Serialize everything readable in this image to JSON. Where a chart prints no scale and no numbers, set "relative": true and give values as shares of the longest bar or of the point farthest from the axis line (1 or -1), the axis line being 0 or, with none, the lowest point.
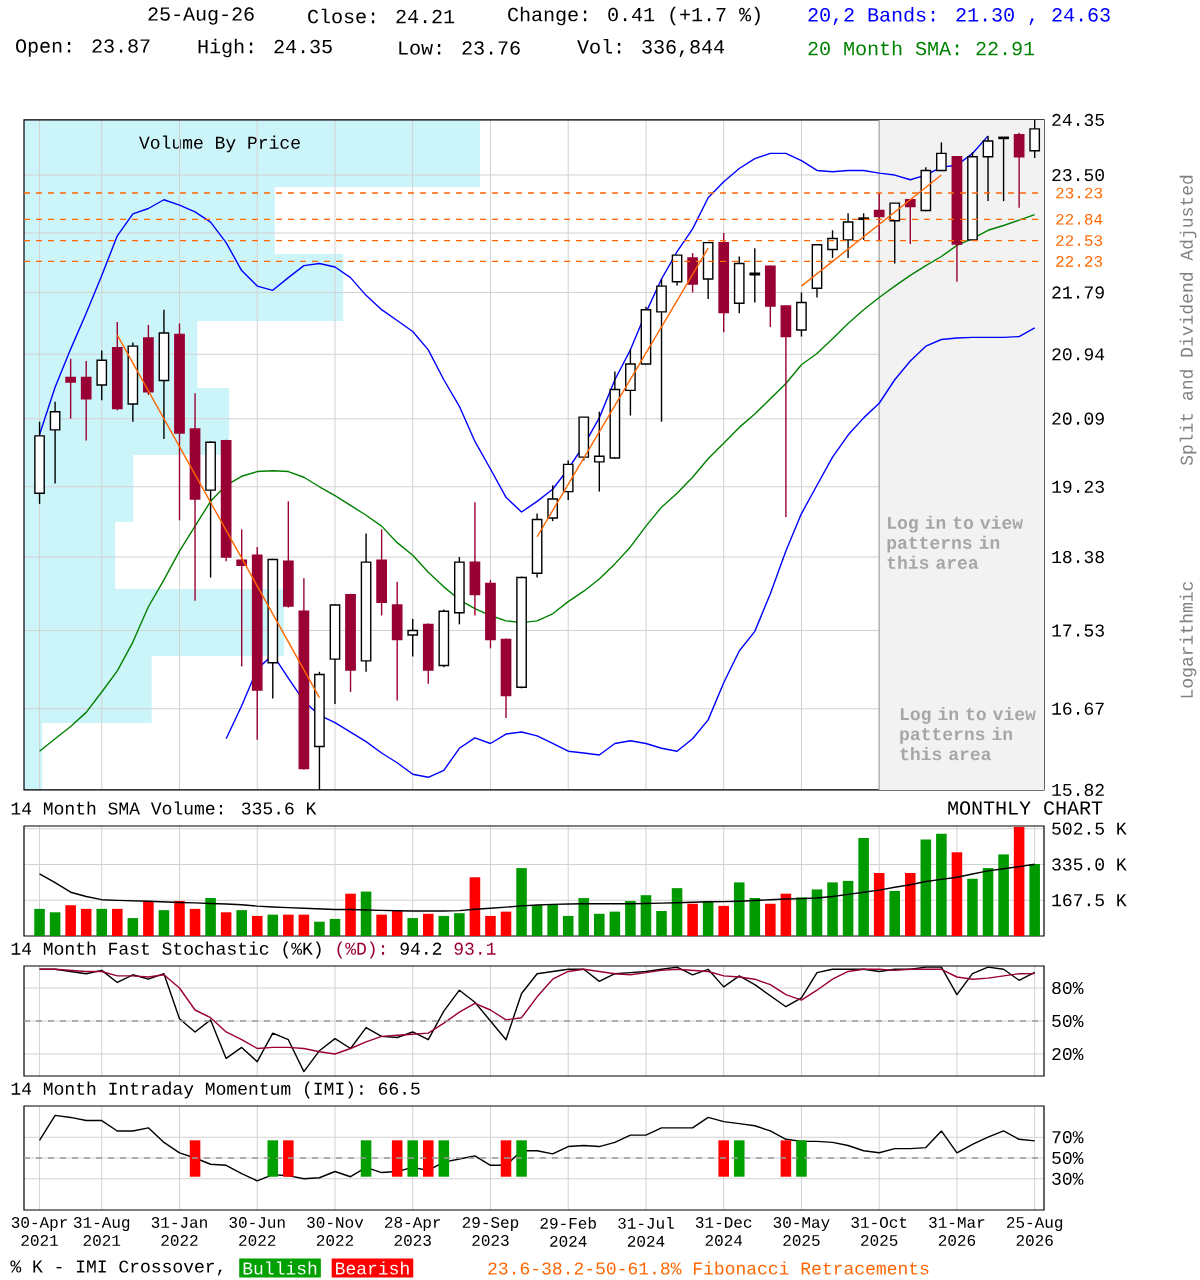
{
  "chart_data": [
    {
      "type": "candlestick",
      "categories": [
        "30-Apr 2021",
        null,
        null,
        null,
        "31-Aug 2021",
        null,
        null,
        null,
        null,
        "31-Jan 2022",
        null,
        null,
        null,
        null,
        "30-Jun 2022",
        null,
        null,
        null,
        null,
        "30-Nov 2022",
        null,
        null,
        null,
        null,
        "28-Apr 2023",
        null,
        null,
        null,
        null,
        "29-Sep 2023",
        null,
        null,
        null,
        null,
        "29-Feb 2024",
        null,
        null,
        null,
        null,
        "31-Jul 2024",
        null,
        null,
        null,
        null,
        "31-Dec 2024",
        null,
        null,
        null,
        null,
        "30-May 2025",
        null,
        null,
        null,
        null,
        "31-Oct 2025",
        null,
        null,
        null,
        null,
        "31-Mar 2026",
        null,
        null,
        null,
        null,
        "25-Aug 2026"
      ],
      "ohlc": [
        [
          19.15,
          20.05,
          19.02,
          19.87
        ],
        [
          19.95,
          20.31,
          19.27,
          20.18
        ],
        [
          20.63,
          20.88,
          20.09,
          20.57
        ],
        [
          20.63,
          20.85,
          19.81,
          20.35
        ],
        [
          20.53,
          20.99,
          20.33,
          20.86
        ],
        [
          21.03,
          21.38,
          20.2,
          20.22
        ],
        [
          20.28,
          21.1,
          20.05,
          21.05
        ],
        [
          21.16,
          21.34,
          20.4,
          20.44
        ],
        [
          20.59,
          21.55,
          19.83,
          21.23
        ],
        [
          21.21,
          21.36,
          18.82,
          19.91
        ],
        [
          19.96,
          20.42,
          17.87,
          19.08
        ],
        [
          19.19,
          19.8,
          18.14,
          19.79
        ],
        [
          19.81,
          19.82,
          18.33,
          18.38
        ],
        [
          18.34,
          18.71,
          17.13,
          18.28
        ],
        [
          18.4,
          18.5,
          16.34,
          16.87
        ],
        [
          17.17,
          18.36,
          16.78,
          18.35
        ],
        [
          18.33,
          19.05,
          17.79,
          17.81
        ],
        [
          17.75,
          18.13,
          16.03,
          16.04
        ],
        [
          16.27,
          17.07,
          15.82,
          17.04
        ],
        [
          17.21,
          17.83,
          16.72,
          17.82
        ],
        [
          17.94,
          17.95,
          16.85,
          17.09
        ],
        [
          17.19,
          18.66,
          17.07,
          18.32
        ],
        [
          18.34,
          18.71,
          17.7,
          17.85
        ],
        [
          17.82,
          18.09,
          16.76,
          17.43
        ],
        [
          17.48,
          17.66,
          17.24,
          17.53
        ],
        [
          17.6,
          17.61,
          16.94,
          17.09
        ],
        [
          17.14,
          17.77,
          17.12,
          17.75
        ],
        [
          17.73,
          18.38,
          17.6,
          18.32
        ],
        [
          18.32,
          19.04,
          17.7,
          17.94
        ],
        [
          18.07,
          18.11,
          17.33,
          17.43
        ],
        [
          17.43,
          17.44,
          16.57,
          16.81
        ],
        [
          16.9,
          18.15,
          16.89,
          18.14
        ],
        [
          18.19,
          18.9,
          18.14,
          18.83
        ],
        [
          18.85,
          19.25,
          18.81,
          19.08
        ],
        [
          19.17,
          19.56,
          19.07,
          19.51
        ],
        [
          19.6,
          20.11,
          19.56,
          20.11
        ],
        [
          19.54,
          20.18,
          19.17,
          19.61
        ],
        [
          19.59,
          20.71,
          19.58,
          20.47
        ],
        [
          20.46,
          21.01,
          20.13,
          20.81
        ],
        [
          20.81,
          21.59,
          20.8,
          21.55
        ],
        [
          21.52,
          21.98,
          20.05,
          21.88
        ],
        [
          21.94,
          22.32,
          21.89,
          22.32
        ],
        [
          22.28,
          22.35,
          21.79,
          21.91
        ],
        [
          21.98,
          22.5,
          21.7,
          22.5
        ],
        [
          22.5,
          22.64,
          21.24,
          21.51
        ],
        [
          21.64,
          22.3,
          21.5,
          22.2
        ],
        [
          22.04,
          22.42,
          21.65,
          22.06
        ],
        [
          22.16,
          22.17,
          21.31,
          21.6
        ],
        [
          21.6,
          21.61,
          18.86,
          21.18
        ],
        [
          21.27,
          21.79,
          21.18,
          21.65
        ],
        [
          21.85,
          22.47,
          21.72,
          22.47
        ],
        [
          22.4,
          22.68,
          22.28,
          22.56
        ],
        [
          22.54,
          22.93,
          22.28,
          22.8
        ],
        [
          22.84,
          22.93,
          22.54,
          22.86
        ],
        [
          22.97,
          23.23,
          22.53,
          22.88
        ],
        [
          22.82,
          23.08,
          22.2,
          23.08
        ],
        [
          23.13,
          23.14,
          22.48,
          23.03
        ],
        [
          22.97,
          23.62,
          22.96,
          23.57
        ],
        [
          23.57,
          24.0,
          23.56,
          23.83
        ],
        [
          23.78,
          23.79,
          21.94,
          22.48
        ],
        [
          22.54,
          23.85,
          22.53,
          23.78
        ],
        [
          23.78,
          24.1,
          23.11,
          24.02
        ],
        [
          24.06,
          24.08,
          23.11,
          24.08
        ],
        [
          24.12,
          24.15,
          23.01,
          23.78
        ],
        [
          23.87,
          24.35,
          23.76,
          24.21
        ]
      ],
      "colors": [
        "#ffffff",
        "#ffffff",
        "#990033",
        "#990033",
        "#ffffff",
        "#990033",
        "#ffffff",
        "#990033",
        "#ffffff",
        "#990033",
        "#990033",
        "#ffffff",
        "#990033",
        "#990033",
        "#990033",
        "#ffffff",
        "#990033",
        "#990033",
        "#ffffff",
        "#ffffff",
        "#990033",
        "#ffffff",
        "#990033",
        "#990033",
        "#ffffff",
        "#990033",
        "#ffffff",
        "#ffffff",
        "#990033",
        "#990033",
        "#990033",
        "#ffffff",
        "#ffffff",
        "#ffffff",
        "#ffffff",
        "#ffffff",
        "#ffffff",
        "#ffffff",
        "#ffffff",
        "#ffffff",
        "#ffffff",
        "#ffffff",
        "#990033",
        "#ffffff",
        "#990033",
        "#ffffff",
        "#ffffff",
        "#990033",
        "#990033",
        "#ffffff",
        "#ffffff",
        "#ffffff",
        "#ffffff",
        "#ffffff",
        "#990033",
        "#ffffff",
        "#990033",
        "#ffffff",
        "#ffffff",
        "#990033",
        "#ffffff",
        "#ffffff",
        "#ffffff",
        "#990033",
        "#ffffff"
      ],
      "log": true,
      "ylim": [
        15.82,
        24.35
      ],
      "yticks": [
        24.35,
        {
          "value": 23.5,
          "label": "23.50"
        },
        {
          "value": 22.64,
          "label": null
        },
        21.79,
        20.94,
        20.09,
        19.23,
        18.38,
        17.53,
        16.67,
        15.82
      ],
      "grid": true,
      "tick_labels": "y",
      "series": [
        {
          "type": "line",
          "name": "20,2 Bands: 21.30 , 24.63",
          "color": "#0000ff",
          "values": [
            19.89,
            20.5,
            21.01,
            21.5,
            22.03,
            22.6,
            22.92,
            23.0,
            23.13,
            23.05,
            22.95,
            22.8,
            22.5,
            22.1,
            21.88,
            21.82,
            22.0,
            22.17,
            22.2,
            22.15,
            22.0,
            21.75,
            21.55,
            21.4,
            21.25,
            21.0,
            20.6,
            20.25,
            19.8,
            19.45,
            19.1,
            18.92,
            19.05,
            19.2,
            19.45,
            19.75,
            20.1,
            20.6,
            21.0,
            21.51,
            21.98,
            22.37,
            22.7,
            23.16,
            23.4,
            23.6,
            23.75,
            23.83,
            23.83,
            23.72,
            23.57,
            23.55,
            23.57,
            23.57,
            23.53,
            23.5,
            23.43,
            23.5,
            23.62,
            23.65,
            23.83,
            24.1,
            null,
            null,
            null
          ]
        },
        {
          "type": "line",
          "color": "#0000ff",
          "values": [
            null,
            null,
            null,
            null,
            null,
            null,
            null,
            null,
            null,
            null,
            null,
            null,
            16.35,
            16.7,
            17.1,
            17.26,
            17.0,
            16.75,
            16.6,
            16.52,
            16.42,
            16.32,
            16.2,
            16.1,
            15.98,
            15.95,
            16.02,
            16.25,
            16.36,
            16.3,
            16.4,
            16.42,
            16.38,
            16.3,
            16.22,
            16.2,
            16.18,
            16.3,
            16.33,
            16.3,
            16.25,
            16.22,
            16.35,
            16.55,
            16.95,
            17.3,
            17.52,
            17.95,
            18.45,
            18.9,
            19.25,
            19.6,
            19.88,
            20.1,
            20.29,
            20.6,
            20.85,
            21.05,
            21.14,
            21.16,
            21.17,
            21.17,
            21.17,
            21.18,
            21.3
          ]
        },
        {
          "type": "line",
          "name": "20 Month SMA: 22.91",
          "color": "#008000",
          "values": [
            16.22,
            16.35,
            16.48,
            16.63,
            16.85,
            17.08,
            17.4,
            17.8,
            18.11,
            18.45,
            18.75,
            19.05,
            19.25,
            19.36,
            19.42,
            19.43,
            19.42,
            19.35,
            19.23,
            19.12,
            19.0,
            18.88,
            18.75,
            18.55,
            18.4,
            18.2,
            18.03,
            17.88,
            17.78,
            17.7,
            17.64,
            17.62,
            17.64,
            17.72,
            17.86,
            17.98,
            18.12,
            18.3,
            18.5,
            18.75,
            18.98,
            19.15,
            19.35,
            19.58,
            19.78,
            19.98,
            20.15,
            20.35,
            20.55,
            20.8,
            20.95,
            21.15,
            21.36,
            21.55,
            21.72,
            21.88,
            22.03,
            22.17,
            22.3,
            22.46,
            22.56,
            22.68,
            22.75,
            22.83,
            22.91
          ]
        },
        {
          "type": "line",
          "color": "#ff6600",
          "values": [
            null,
            null,
            null,
            null,
            null,
            21.2,
            null,
            null,
            null,
            null,
            null,
            null,
            null,
            null,
            null,
            null,
            null,
            null,
            16.79,
            null,
            null,
            null,
            null,
            null,
            null,
            null,
            null,
            null,
            null,
            null,
            null,
            null,
            null,
            null,
            null,
            null,
            null,
            null,
            null,
            null,
            null,
            null,
            null,
            null,
            null,
            null,
            null,
            null,
            null,
            null,
            null,
            null,
            null,
            null,
            null,
            null,
            null,
            null,
            null,
            null,
            null,
            null,
            null,
            null,
            null
          ]
        },
        {
          "type": "line",
          "color": "#ff6600",
          "values": [
            null,
            null,
            null,
            null,
            null,
            null,
            null,
            null,
            null,
            null,
            null,
            null,
            null,
            null,
            null,
            null,
            null,
            null,
            null,
            null,
            null,
            null,
            null,
            null,
            null,
            null,
            null,
            null,
            null,
            null,
            null,
            null,
            18.62,
            null,
            null,
            null,
            null,
            null,
            null,
            null,
            null,
            null,
            null,
            22.42,
            null,
            null,
            null,
            null,
            null,
            null,
            null,
            null,
            null,
            null,
            null,
            null,
            null,
            null,
            null,
            null,
            null,
            null,
            null,
            null,
            null
          ]
        },
        {
          "type": "line",
          "color": "#ff6600",
          "values": [
            null,
            null,
            null,
            null,
            null,
            null,
            null,
            null,
            null,
            null,
            null,
            null,
            null,
            null,
            null,
            null,
            null,
            null,
            null,
            null,
            null,
            null,
            null,
            null,
            null,
            null,
            null,
            null,
            null,
            null,
            null,
            null,
            null,
            null,
            null,
            null,
            null,
            null,
            null,
            null,
            null,
            null,
            null,
            null,
            null,
            null,
            null,
            null,
            null,
            21.88,
            null,
            null,
            null,
            null,
            null,
            null,
            null,
            null,
            23.5,
            null,
            null,
            null,
            null,
            null,
            null
          ]
        }
      ],
      "ref_lines": [
        {
          "axis": "y",
          "value": 23.23,
          "label": "23.23",
          "color": "#ff6600",
          "line_style": "dashed"
        },
        {
          "axis": "y",
          "value": 22.84,
          "label": "22.84",
          "color": "#ff6600",
          "line_style": "dashed"
        },
        {
          "axis": "y",
          "value": 22.53,
          "label": "22.53",
          "color": "#ff6600",
          "line_style": "dashed"
        },
        {
          "axis": "y",
          "value": 22.23,
          "label": "22.23",
          "color": "#ff6600",
          "line_style": "dashed"
        }
      ],
      "bands": [
        {
          "axis": "x",
          "from": "31-Oct 2025",
          "to": "25-Aug 2026",
          "label": "Log in to view patterns in this area",
          "color": "#f2f2f2"
        }
      ],
      "annotations": [
        "25-Aug-26",
        "Close: 24.21",
        "Change: 0.41 (+1.7 %)",
        "Open: 23.87",
        "High: 24.35",
        "Low: 23.76",
        "Vol: 336,844",
        "Split and Dividend Adjusted",
        "Logarithmic",
        "Log in to view patterns in this area",
        "23.6-38.2-50-61.8% Fibonacci Retracements"
      ]
    },
    {
      "type": "bar",
      "orientation": "horizontal",
      "relative": true,
      "title": "Volume By Price",
      "color": "#ccf5fa",
      "categories": [
        null,
        null,
        null,
        null,
        null,
        null,
        null,
        null,
        null,
        null
      ],
      "values": [
        1,
        0.55,
        0.7,
        0.38,
        0.45,
        0.24,
        0.2,
        0.57,
        0.28,
        0.04
      ]
    },
    {
      "type": "bar",
      "title": "14 Month SMA Volume: 335.6 K",
      "categories": [
        "30-Apr 2021",
        null,
        null,
        null,
        "31-Aug 2021",
        null,
        null,
        null,
        null,
        "31-Jan 2022",
        null,
        null,
        null,
        null,
        "30-Jun 2022",
        null,
        null,
        null,
        null,
        "30-Nov 2022",
        null,
        null,
        null,
        null,
        "28-Apr 2023",
        null,
        null,
        null,
        null,
        "29-Sep 2023",
        null,
        null,
        null,
        null,
        "29-Feb 2024",
        null,
        null,
        null,
        null,
        "31-Jul 2024",
        null,
        null,
        null,
        null,
        "31-Dec 2024",
        null,
        null,
        null,
        null,
        "30-May 2025",
        null,
        null,
        null,
        null,
        "31-Oct 2025",
        null,
        null,
        null,
        null,
        "31-Mar 2026",
        null,
        null,
        null,
        null,
        "25-Aug 2026"
      ],
      "ylim": [
        0,
        515
      ],
      "yticks": [
        {
          "value": 167.5,
          "label": "167.5 K"
        },
        {
          "value": 335,
          "label": "335.0 K"
        },
        {
          "value": 502.5,
          "label": "502.5 K"
        }
      ],
      "grid": true,
      "tick_labels": "y",
      "series": [
        {
          "type": "bar",
          "values": [
            127,
            111,
            144,
            127,
            127,
            127,
            84,
            164,
            121,
            164,
            127,
            178,
            111,
            121,
            94,
            100,
            100,
            100,
            67,
            80,
            198,
            208,
            100,
            117,
            84,
            104,
            94,
            107,
            275,
            94,
            114,
            318,
            144,
            147,
            94,
            178,
            104,
            114,
            164,
            191,
            117,
            224,
            151,
            161,
            141,
            251,
            178,
            151,
            198,
            181,
            218,
            251,
            258,
            459,
            295,
            211,
            295,
            452,
            479,
            392,
            268,
            318,
            382,
            510,
            337
          ],
          "colors": [
            "#009900",
            "#009900",
            "#ff0000",
            "#ff0000",
            "#009900",
            "#ff0000",
            "#009900",
            "#ff0000",
            "#009900",
            "#ff0000",
            "#ff0000",
            "#009900",
            "#ff0000",
            "#009900",
            "#ff0000",
            "#009900",
            "#ff0000",
            "#ff0000",
            "#009900",
            "#009900",
            "#ff0000",
            "#009900",
            "#ff0000",
            "#ff0000",
            "#009900",
            "#ff0000",
            "#009900",
            "#009900",
            "#ff0000",
            "#ff0000",
            "#ff0000",
            "#009900",
            "#009900",
            "#009900",
            "#009900",
            "#009900",
            "#009900",
            "#009900",
            "#009900",
            "#009900",
            "#009900",
            "#009900",
            "#ff0000",
            "#009900",
            "#ff0000",
            "#009900",
            "#009900",
            "#ff0000",
            "#ff0000",
            "#009900",
            "#009900",
            "#009900",
            "#009900",
            "#009900",
            "#ff0000",
            "#009900",
            "#ff0000",
            "#009900",
            "#009900",
            "#ff0000",
            "#009900",
            "#009900",
            "#009900",
            "#ff0000",
            "#009900"
          ]
        },
        {
          "type": "line",
          "color": "#000000",
          "values": [
            291,
            250,
            205,
            185,
            170,
            167,
            165,
            163,
            160,
            157,
            155,
            152,
            150,
            146,
            140,
            136,
            133,
            130,
            127,
            124,
            124,
            122,
            120,
            118,
            117,
            117,
            117,
            119,
            125,
            130,
            135,
            141,
            145,
            148,
            150,
            151,
            151,
            151,
            151,
            152,
            154,
            156,
            158,
            160,
            161,
            163,
            166,
            170,
            173,
            175,
            178,
            185,
            195,
            205,
            215,
            228,
            240,
            255,
            265,
            275,
            290,
            305,
            315,
            325,
            335.6
          ]
        }
      ],
      "annotations": [
        "MONTHLY CHART"
      ]
    },
    {
      "type": "line",
      "title": "14 Month Fast Stochastic",
      "categories": [
        "30-Apr 2021",
        null,
        null,
        null,
        "31-Aug 2021",
        null,
        null,
        null,
        null,
        "31-Jan 2022",
        null,
        null,
        null,
        null,
        "30-Jun 2022",
        null,
        null,
        null,
        null,
        "30-Nov 2022",
        null,
        null,
        null,
        null,
        "28-Apr 2023",
        null,
        null,
        null,
        null,
        "29-Sep 2023",
        null,
        null,
        null,
        null,
        "29-Feb 2024",
        null,
        null,
        null,
        null,
        "31-Jul 2024",
        null,
        null,
        null,
        null,
        "31-Dec 2024",
        null,
        null,
        null,
        null,
        "30-May 2025",
        null,
        null,
        null,
        null,
        "31-Oct 2025",
        null,
        null,
        null,
        null,
        "31-Mar 2026",
        null,
        null,
        null,
        null,
        "25-Aug 2026"
      ],
      "ylim": [
        0,
        100
      ],
      "yticks": [
        {
          "value": 80,
          "label": "80%"
        },
        {
          "value": 50,
          "label": "50%"
        },
        {
          "value": 20,
          "label": "20%"
        }
      ],
      "grid": true,
      "tick_labels": "y",
      "ref_lines": [
        {
          "axis": "y",
          "value": 50,
          "color": "#999999",
          "line_style": "dashed"
        }
      ],
      "series": [
        {
          "name": "(%K)",
          "color": "#000000",
          "values": [
            97,
            97,
            95,
            93,
            96,
            85,
            92,
            88,
            93,
            52,
            40,
            51,
            16,
            26,
            13,
            39,
            33,
            4,
            23,
            34,
            25,
            44,
            36,
            35,
            40,
            33,
            59,
            78,
            67,
            50,
            33,
            75,
            93,
            95,
            97,
            97,
            86,
            93,
            94,
            95,
            97,
            99,
            92,
            97,
            81,
            91,
            83,
            73,
            63,
            71,
            94,
            97,
            97,
            97,
            95,
            97,
            97,
            99,
            99,
            74,
            93,
            99,
            97,
            87,
            94.2
          ]
        },
        {
          "name": "(%D):",
          "color": "#990033",
          "values": [
            97,
            97,
            96,
            95,
            95,
            91,
            91,
            90,
            92,
            80,
            60,
            53,
            40,
            33,
            25,
            26,
            26,
            25,
            22,
            20,
            25,
            31,
            36,
            37,
            38,
            39,
            48,
            58,
            66,
            60,
            51,
            53,
            72,
            88,
            95,
            97,
            95,
            93,
            92,
            94,
            96,
            97,
            96,
            95,
            91,
            90,
            88,
            83,
            74,
            69,
            78,
            88,
            95,
            97,
            97,
            96,
            97,
            97,
            97,
            90,
            88,
            89,
            91,
            93,
            93.1
          ]
        }
      ],
      "annotations": [
        "94.2",
        "93.1"
      ]
    },
    {
      "type": "line",
      "title": "14 Month Intraday Momentum (IMI): 66.5",
      "categories": [
        "30-Apr 2021",
        null,
        null,
        null,
        "31-Aug 2021",
        null,
        null,
        null,
        null,
        "31-Jan 2022",
        null,
        null,
        null,
        null,
        "30-Jun 2022",
        null,
        null,
        null,
        null,
        "30-Nov 2022",
        null,
        null,
        null,
        null,
        "28-Apr 2023",
        null,
        null,
        null,
        null,
        "29-Sep 2023",
        null,
        null,
        null,
        null,
        "29-Feb 2024",
        null,
        null,
        null,
        null,
        "31-Jul 2024",
        null,
        null,
        null,
        null,
        "31-Dec 2024",
        null,
        null,
        null,
        null,
        "30-May 2025",
        null,
        null,
        null,
        null,
        "31-Oct 2025",
        null,
        null,
        null,
        null,
        "31-Mar 2026",
        null,
        null,
        null,
        null,
        "25-Aug 2026"
      ],
      "ylim": [
        0,
        100
      ],
      "yticks": [
        {
          "value": 70,
          "label": "70%"
        },
        {
          "value": 50,
          "label": "50%"
        },
        {
          "value": 30,
          "label": "30%"
        }
      ],
      "grid": true,
      "ref_lines": [
        {
          "axis": "y",
          "value": 50,
          "color": "#999999",
          "line_style": "dashed"
        }
      ],
      "legend": "bottom",
      "legend_title": "% K - IMI Crossover,",
      "series": [
        {
          "color": "#000000",
          "values": [
            67,
            91,
            89,
            86,
            86,
            76,
            76,
            79,
            65,
            55,
            50,
            44,
            43,
            35,
            28,
            34,
            33,
            30,
            31,
            37,
            32,
            41,
            36,
            37,
            41,
            38,
            46,
            49,
            52,
            43,
            43,
            57,
            57,
            54,
            61,
            62,
            61,
            65,
            72,
            72,
            79,
            79,
            79,
            89,
            85,
            83,
            81,
            76,
            68,
            66,
            66,
            65,
            62,
            57,
            55,
            59,
            59,
            60,
            76,
            55,
            63,
            70,
            76,
            68,
            66.5
          ]
        },
        {
          "type": "bar",
          "name": "Bullish",
          "color": "#00a000",
          "values": [
            null,
            null,
            null,
            null,
            null,
            null,
            null,
            null,
            null,
            null,
            null,
            null,
            null,
            null,
            null,
            35,
            null,
            null,
            null,
            null,
            null,
            35,
            null,
            null,
            35,
            null,
            35,
            null,
            null,
            null,
            null,
            35,
            null,
            null,
            null,
            null,
            null,
            null,
            null,
            null,
            null,
            null,
            null,
            null,
            null,
            35,
            null,
            null,
            null,
            35,
            null,
            null,
            null,
            null,
            null,
            null,
            null,
            null,
            null,
            null,
            null,
            null,
            null,
            null,
            null
          ],
          "base": [
            null,
            null,
            null,
            null,
            null,
            null,
            null,
            null,
            null,
            null,
            null,
            null,
            null,
            null,
            null,
            32,
            null,
            null,
            null,
            null,
            null,
            32,
            null,
            null,
            32,
            null,
            32,
            null,
            null,
            null,
            null,
            32,
            null,
            null,
            null,
            null,
            null,
            null,
            null,
            null,
            null,
            null,
            null,
            null,
            null,
            32,
            null,
            null,
            null,
            32,
            null,
            null,
            null,
            null,
            null,
            null,
            null,
            null,
            null,
            null,
            null,
            null,
            null,
            null,
            null
          ]
        },
        {
          "type": "bar",
          "name": "Bearish",
          "color": "#ff0000",
          "values": [
            null,
            null,
            null,
            null,
            null,
            null,
            null,
            null,
            null,
            null,
            35,
            null,
            null,
            null,
            null,
            null,
            35,
            null,
            null,
            null,
            null,
            null,
            null,
            35,
            null,
            35,
            null,
            null,
            null,
            null,
            35,
            null,
            null,
            null,
            null,
            null,
            null,
            null,
            null,
            null,
            null,
            null,
            null,
            null,
            35,
            null,
            null,
            null,
            35,
            null,
            null,
            null,
            null,
            null,
            null,
            null,
            null,
            null,
            null,
            null,
            null,
            null,
            null,
            null,
            null
          ],
          "base": [
            null,
            null,
            null,
            null,
            null,
            null,
            null,
            null,
            null,
            null,
            32,
            null,
            null,
            null,
            null,
            null,
            32,
            null,
            null,
            null,
            null,
            null,
            null,
            32,
            null,
            32,
            null,
            null,
            null,
            null,
            32,
            null,
            null,
            null,
            null,
            null,
            null,
            null,
            null,
            null,
            null,
            null,
            null,
            null,
            32,
            null,
            null,
            null,
            32,
            null,
            null,
            null,
            null,
            null,
            null,
            null,
            null,
            null,
            null,
            null,
            null,
            null,
            null,
            null,
            null
          ]
        }
      ]
    }
  ]
}
